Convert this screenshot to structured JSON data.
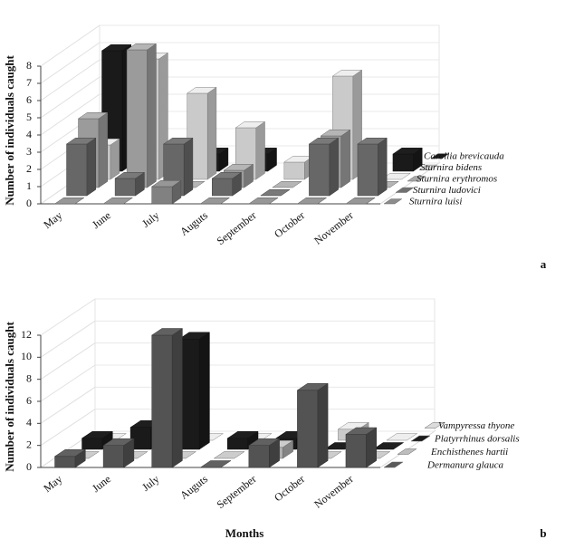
{
  "chart_data": [
    {
      "type": "bar3d",
      "label": "a",
      "y_label": "Number of individuals caught",
      "categories": [
        "May",
        "June",
        "July",
        "Auguts",
        "September",
        "October",
        "November"
      ],
      "series": [
        {
          "name": "Carollia brevicauda",
          "color": "#1c1c1c",
          "values": [
            7,
            1,
            1,
            1,
            0,
            1,
            1
          ]
        },
        {
          "name": "Sturnira bidens",
          "color": "#dcdcdc",
          "values": [
            2,
            7,
            5,
            3,
            1,
            6,
            0
          ]
        },
        {
          "name": "Sturnira erythromos",
          "color": "#a8a8a8",
          "values": [
            4,
            8,
            0,
            1,
            0,
            3,
            0
          ]
        },
        {
          "name": "Sturnira ludovici",
          "color": "#707070",
          "values": [
            3,
            1,
            3,
            1,
            0,
            3,
            3
          ]
        },
        {
          "name": "Sturnira luisi",
          "color": "#8c8c8c",
          "values": [
            0,
            0,
            1,
            0,
            0,
            0,
            0
          ]
        }
      ],
      "ylim": [
        0,
        8
      ],
      "yticks": [
        0,
        1,
        2,
        3,
        4,
        5,
        6,
        7,
        8
      ],
      "grid": true
    },
    {
      "type": "bar3d",
      "label": "b",
      "y_label": "Number of individuals caught",
      "x_label": "Months",
      "categories": [
        "May",
        "June",
        "July",
        "Auguts",
        "September",
        "October",
        "November"
      ],
      "series": [
        {
          "name": "Vampyressa thyone",
          "color": "#dcdcdc",
          "values": [
            0,
            0,
            0,
            0,
            0,
            1,
            0
          ]
        },
        {
          "name": "Platyrrhinus dorsalis",
          "color": "#1c1c1c",
          "values": [
            1,
            2,
            10,
            1,
            1,
            0,
            0
          ]
        },
        {
          "name": "Enchisthenes hartii",
          "color": "#bdbdbd",
          "values": [
            0,
            0,
            0,
            0,
            1,
            0,
            0
          ]
        },
        {
          "name": "Dermanura glauca",
          "color": "#5a5a5a",
          "values": [
            1,
            2,
            12,
            0,
            2,
            7,
            3
          ]
        }
      ],
      "ylim": [
        0,
        12
      ],
      "yticks": [
        0,
        2,
        4,
        6,
        8,
        10,
        12
      ],
      "grid": true
    }
  ]
}
